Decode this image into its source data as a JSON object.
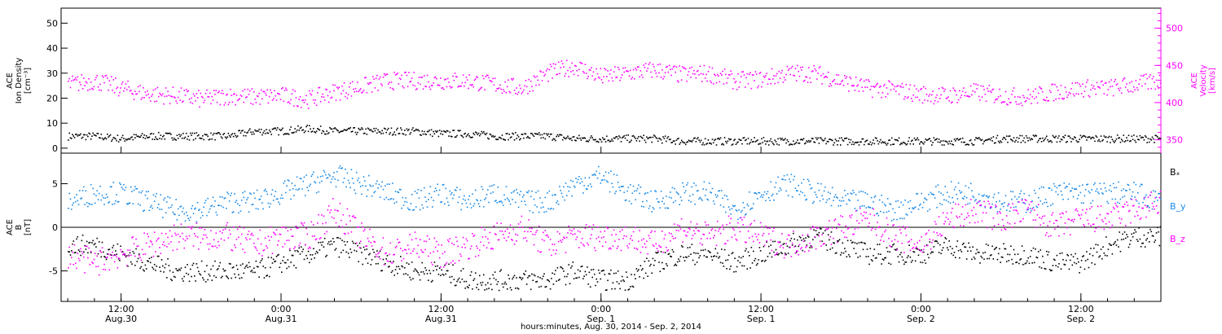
{
  "colors": {
    "density": "#000000",
    "velocity": "#ff00ff",
    "bx": "#000000",
    "by": "#1a8ae6",
    "bz": "#ff00ff",
    "axis": "#000000"
  },
  "xlabel": "hours:minutes, Aug. 30, 2014 - Sep. 2, 2014",
  "chart_data": [
    {
      "type": "scatter",
      "panel": "top",
      "x_unit": "hours since 2014-08-30 00:00 UT",
      "xlim": [
        7.5,
        90
      ],
      "x_ticks": [
        {
          "x": 12,
          "line1": "12:00",
          "line2": "Aug.30"
        },
        {
          "x": 24,
          "line1": "0:00",
          "line2": "Aug.31"
        },
        {
          "x": 36,
          "line1": "12:00",
          "line2": "Aug.31"
        },
        {
          "x": 48,
          "line1": "0:00",
          "line2": "Sep. 1"
        },
        {
          "x": 60,
          "line1": "12:00",
          "line2": "Sep. 1"
        },
        {
          "x": 72,
          "line1": "0:00",
          "line2": "Sep. 2"
        },
        {
          "x": 84,
          "line1": "12:00",
          "line2": "Sep. 2"
        }
      ],
      "left_axis": {
        "label_lines": [
          "ACE",
          "Ion Density",
          "[cm⁻³]"
        ],
        "ylim": [
          -2,
          56
        ],
        "ticks": [
          0,
          10,
          20,
          30,
          40,
          50
        ]
      },
      "right_axis": {
        "label_lines": [
          "ACE",
          "Velocity",
          "[km/s]"
        ],
        "ylim": [
          332,
          527
        ],
        "ticks": [
          350,
          400,
          450,
          500
        ]
      },
      "series": [
        {
          "axis": "left",
          "x": [
            8,
            10,
            12,
            14,
            16,
            18,
            20,
            22,
            24,
            26,
            28,
            30,
            32,
            34,
            36,
            38,
            40,
            42,
            44,
            46,
            48,
            50,
            52,
            54,
            56,
            58,
            60,
            62,
            64,
            66,
            68,
            70,
            72,
            74,
            76,
            78,
            80,
            82,
            84,
            86,
            88,
            90
          ],
          "values": [
            5,
            5,
            4,
            5,
            5,
            5,
            5,
            7,
            7,
            8,
            7,
            7,
            7,
            7,
            6,
            6,
            5,
            5,
            5,
            4,
            4,
            4,
            4,
            3,
            3,
            3,
            3,
            3,
            3,
            3,
            3,
            3,
            3,
            3,
            3,
            4,
            4,
            4,
            4,
            4,
            4,
            4
          ]
        },
        {
          "axis": "right",
          "x": [
            8,
            10,
            12,
            14,
            16,
            18,
            20,
            22,
            24,
            26,
            28,
            30,
            32,
            34,
            36,
            38,
            40,
            42,
            44,
            46,
            48,
            50,
            52,
            54,
            56,
            58,
            60,
            62,
            64,
            66,
            68,
            70,
            72,
            74,
            76,
            78,
            80,
            82,
            84,
            86,
            88,
            90
          ],
          "values": [
            425,
            430,
            420,
            412,
            410,
            405,
            410,
            408,
            410,
            405,
            415,
            422,
            430,
            430,
            430,
            430,
            425,
            420,
            440,
            450,
            435,
            440,
            445,
            438,
            440,
            430,
            432,
            440,
            440,
            430,
            420,
            418,
            412,
            410,
            415,
            410,
            408,
            415,
            420,
            420,
            425,
            430
          ]
        }
      ]
    },
    {
      "type": "scatter",
      "panel": "bottom",
      "x_unit": "hours since 2014-08-30 00:00 UT",
      "xlim": [
        7.5,
        90
      ],
      "left_axis": {
        "label_lines": [
          "ACE",
          "B",
          "[nT]"
        ],
        "ylim": [
          -8.5,
          8.5
        ],
        "ticks": [
          -5,
          0,
          5
        ]
      },
      "zero_line": true,
      "series": [
        {
          "name": "Bₓ",
          "x": [
            8,
            10,
            12,
            14,
            16,
            18,
            20,
            22,
            24,
            26,
            28,
            30,
            32,
            34,
            36,
            38,
            40,
            42,
            44,
            46,
            48,
            50,
            52,
            54,
            56,
            58,
            60,
            62,
            64,
            66,
            68,
            70,
            72,
            74,
            76,
            78,
            80,
            82,
            84,
            86,
            88,
            90
          ],
          "values": [
            -2,
            -2,
            -3,
            -4,
            -5,
            -5,
            -5,
            -5,
            -4,
            -3,
            -2,
            -3,
            -4,
            -5,
            -5,
            -6,
            -6,
            -6,
            -6,
            -5,
            -6,
            -6,
            -4,
            -3,
            -3,
            -4,
            -3,
            -2,
            -1,
            -2,
            -3,
            -3,
            -3,
            -2,
            -3,
            -3,
            -3,
            -4,
            -4,
            -2,
            -1,
            -1
          ]
        },
        {
          "name": "B_y",
          "x": [
            8,
            10,
            12,
            14,
            16,
            18,
            20,
            22,
            24,
            26,
            28,
            30,
            32,
            34,
            36,
            38,
            40,
            42,
            44,
            46,
            48,
            50,
            52,
            54,
            56,
            58,
            60,
            62,
            64,
            66,
            68,
            70,
            72,
            74,
            76,
            78,
            80,
            82,
            84,
            86,
            88,
            90
          ],
          "values": [
            3,
            4,
            4,
            3,
            2,
            2,
            3,
            3,
            4,
            5,
            6,
            5,
            4,
            3,
            4,
            3,
            4,
            3,
            3,
            5,
            6,
            4,
            3,
            4,
            4,
            2,
            4,
            5,
            4,
            3,
            3,
            2,
            3,
            4,
            4,
            3,
            3,
            4,
            4,
            4,
            4,
            3
          ]
        },
        {
          "name": "B_z",
          "x": [
            8,
            10,
            12,
            14,
            16,
            18,
            20,
            22,
            24,
            26,
            28,
            30,
            32,
            34,
            36,
            38,
            40,
            42,
            44,
            46,
            48,
            50,
            52,
            54,
            56,
            58,
            60,
            62,
            64,
            66,
            68,
            70,
            72,
            74,
            76,
            78,
            80,
            82,
            84,
            86,
            88,
            90
          ],
          "values": [
            -3,
            -4,
            -3,
            -2,
            -1,
            -1,
            -1,
            -2,
            -1,
            -1,
            2,
            -1,
            -3,
            -2,
            -3,
            -2,
            -1,
            0,
            -2,
            -1,
            -1,
            -1,
            -2,
            0,
            -1,
            0,
            -1,
            -2,
            -1,
            0,
            1,
            -1,
            -2,
            1,
            2,
            1,
            2,
            0,
            1,
            1,
            2,
            3
          ]
        }
      ]
    }
  ]
}
